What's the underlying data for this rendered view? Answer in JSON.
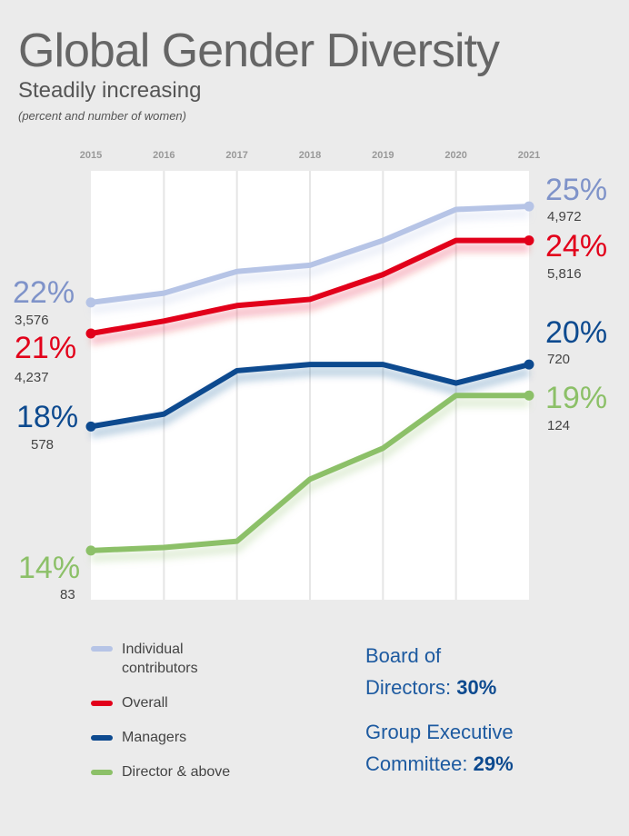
{
  "title": "Global Gender Diversity",
  "subtitle": "Steadily increasing",
  "note": "(percent and number of women)",
  "colors": {
    "individual": "#b6c4e6",
    "overall": "#e2001a",
    "managers": "#0d4a8f",
    "director": "#8cc068",
    "label_individual": "#7f93c9",
    "background": "#ebebeb",
    "plot_bg": "#ffffff",
    "grid": "#e6e6e6"
  },
  "chart_data": {
    "type": "line",
    "title": "Global Gender Diversity",
    "subtitle": "Steadily increasing",
    "x": [
      "2015",
      "2016",
      "2017",
      "2018",
      "2019",
      "2020",
      "2021"
    ],
    "series": [
      {
        "key": "individual",
        "name": "Individual contributors",
        "values": [
          22.0,
          22.3,
          23.0,
          23.2,
          24.0,
          25.0,
          25.1
        ],
        "start_label": "22%",
        "start_count": "3,576",
        "end_label": "25%",
        "end_count": "4,972"
      },
      {
        "key": "overall",
        "name": "Overall",
        "values": [
          21.0,
          21.4,
          21.9,
          22.1,
          22.9,
          24.0,
          24.0
        ],
        "start_label": "21%",
        "start_count": "4,237",
        "end_label": "24%",
        "end_count": "5,816"
      },
      {
        "key": "managers",
        "name": "Managers",
        "values": [
          18.0,
          18.4,
          19.8,
          20.0,
          20.0,
          19.4,
          20.0
        ],
        "start_label": "18%",
        "start_count": "578",
        "end_label": "20%",
        "end_count": "720"
      },
      {
        "key": "director",
        "name": "Director & above",
        "values": [
          14.0,
          14.1,
          14.3,
          16.3,
          17.3,
          19.0,
          19.0
        ],
        "start_label": "14%",
        "start_count": "83",
        "end_label": "19%",
        "end_count": "124"
      }
    ],
    "ylim": [
      13.0,
      25.6
    ],
    "grid": true,
    "legend": "bottom-left"
  },
  "legend": {
    "individual_line1": "Individual",
    "individual_line2": "contributors",
    "overall": "Overall",
    "managers": "Managers",
    "director": "Director & above"
  },
  "board": {
    "line1": "Board of",
    "line2": "Directors: ",
    "line2_value": "30%",
    "line3": "Group Executive",
    "line4": "Committee: ",
    "line4_value": "29%"
  }
}
